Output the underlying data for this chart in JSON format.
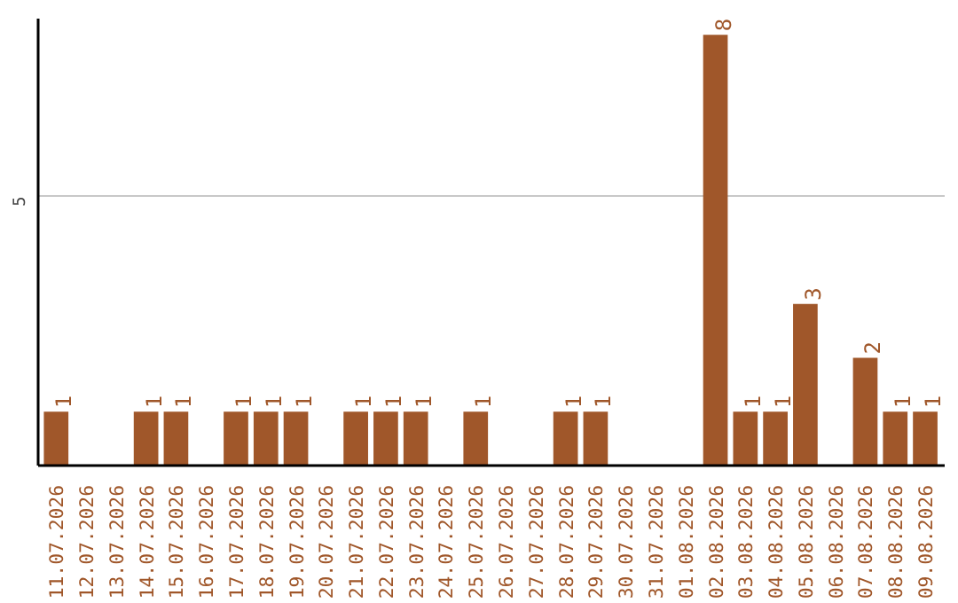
{
  "chart_data": {
    "type": "bar",
    "categories": [
      "11.07.2026",
      "12.07.2026",
      "13.07.2026",
      "14.07.2026",
      "15.07.2026",
      "16.07.2026",
      "17.07.2026",
      "18.07.2026",
      "19.07.2026",
      "20.07.2026",
      "21.07.2026",
      "22.07.2026",
      "23.07.2026",
      "24.07.2026",
      "25.07.2026",
      "26.07.2026",
      "27.07.2026",
      "28.07.2026",
      "29.07.2026",
      "30.07.2026",
      "31.07.2026",
      "01.08.2026",
      "02.08.2026",
      "03.08.2026",
      "04.08.2026",
      "05.08.2026",
      "06.08.2026",
      "07.08.2026",
      "08.08.2026",
      "09.08.2026"
    ],
    "values": [
      1,
      0,
      0,
      1,
      1,
      0,
      1,
      1,
      1,
      0,
      1,
      1,
      1,
      0,
      1,
      0,
      0,
      1,
      1,
      0,
      0,
      0,
      8,
      1,
      1,
      3,
      0,
      2,
      1,
      1
    ],
    "value_labels": [
      "1",
      null,
      null,
      "1",
      "1",
      null,
      "1",
      "1",
      "1",
      null,
      "1",
      "1",
      "1",
      null,
      "1",
      null,
      null,
      "1",
      "1",
      null,
      null,
      null,
      "8",
      "1",
      "1",
      "3",
      null,
      "2",
      "1",
      "1"
    ],
    "color": "#a0572a",
    "ylim": [
      0,
      8.3
    ],
    "yticks": [
      5
    ],
    "grid": "y"
  }
}
